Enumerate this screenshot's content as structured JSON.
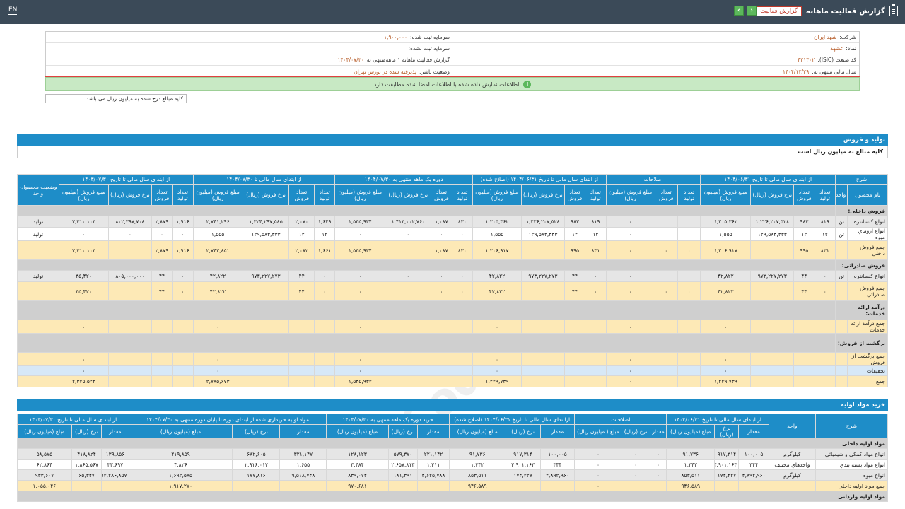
{
  "topbar": {
    "lang": "EN",
    "title": "گزارش فعالیت ماهانه",
    "report_select": "گزارش فعالیت",
    "next": "‹",
    "prev": "›"
  },
  "info": {
    "company_label": "شرکت:",
    "company": "شهد ایران",
    "capital_label": "سرمایه ثبت شده:",
    "capital": "۱,۹۰۰,۰۰۰",
    "symbol_label": "نماد:",
    "symbol": "غشهد",
    "unreg_capital_label": "سرمایه ثبت نشده:",
    "unreg_capital": "۰",
    "isic_label": "کد صنعت (ISIC):",
    "isic": "۴۲۱۳۰۲",
    "report_label": "گزارش فعالیت ماهانه ۱ ماهه‌منتهی به",
    "report_date": "۱۴۰۴/۰۷/۳۰",
    "fiscal_label": "سال مالی منتهی به:",
    "fiscal": "۱۴۰۴/۱۲/۲۹",
    "status_label": "وضعیت ناشر:",
    "status": "پذیرفته شده در بورس تهران",
    "notice": "اطلاعات نمایش داده شده با اطلاعات امضا شده مطابقت دارد",
    "unit_note": "کلیه مبالغ درج شده به میلیون ریال می باشد"
  },
  "section1": {
    "title": "تولید و فروش",
    "subtitle": "کلیه مبالغ به میلیون ریال است",
    "header_top": [
      "شرح",
      "از ابتدای سال مالی تا تاریخ ۱۴۰۴/۰۶/۳۱",
      "اصلاحات",
      "از ابتدای سال مالی تا تاریخ ۱۴۰۴/۰۶/۳۱ (اصلاح شده)",
      "دوره یک ماهه منتهی به ۱۴۰۴/۰۷/۳۰",
      "از ابتدای سال مالی تا ۱۴۰۴/۰۷/۳۰",
      "از ابتدای سال مالی تا تاریخ ۱۴۰۳/۰۷/۳۰",
      "وضعیت محصول-واحد"
    ],
    "header_sub": [
      "نام محصول",
      "واحد",
      "تعداد تولید",
      "تعداد فروش",
      "نرخ فروش (ریال)",
      "مبلغ فروش (میلیون ریال)",
      "تعداد تولید",
      "تعداد فروش",
      "مبلغ فروش (میلیون ریال)",
      "تعداد تولید",
      "تعداد فروش",
      "نرخ فروش (ریال)",
      "مبلغ فروش (میلیون ریال)",
      "تعداد تولید",
      "تعداد فروش",
      "نرخ فروش (ریال)",
      "مبلغ فروش (میلیون ریال)",
      "تعداد تولید",
      "تعداد فروش",
      "نرخ فروش (ریال)",
      "مبلغ فروش (میلیون ریال)",
      "تعداد تولید",
      "تعداد فروش",
      "نرخ فروش (ریال)",
      "مبلغ فروش (میلیون ریال)"
    ],
    "rows": [
      {
        "style": "cat",
        "cells": [
          "فروش داخلی:"
        ]
      },
      {
        "style": "g",
        "cells": [
          "انواع کنسانتره",
          "تن",
          "۸۱۹",
          "۹۸۳",
          "۱,۲۲۶,۲۰۷,۵۲۸",
          "۱,۲۰۵,۳۶۲",
          "",
          "",
          "۰",
          "۸۱۹",
          "۹۸۳",
          "۱,۲۲۶,۲۰۷,۵۲۸",
          "۱,۲۰۵,۳۶۲",
          "۸۳۰",
          "۱,۰۸۷",
          "۱,۴۱۳,۰۰۲,۷۶۰",
          "۱,۵۳۵,۹۳۴",
          "۱,۶۴۹",
          "۲,۰۷۰",
          "۱,۳۲۴,۲۹۷,۵۸۵",
          "۲,۷۴۱,۲۹۶",
          "۱,۹۱۶",
          "۲,۸۷۹",
          "۸۰۲,۳۹۷,۷۰۸",
          "۲,۳۱۰,۱۰۳",
          "تولید"
        ]
      },
      {
        "style": "w",
        "cells": [
          "انواع آروماي ميوه",
          "تن",
          "۱۲",
          "۱۲",
          "۱۲۹,۵۸۳,۳۳۳",
          "۱,۵۵۵",
          "",
          "",
          "۰",
          "۱۲",
          "۱۲",
          "۱۲۹,۵۸۳,۳۳۳",
          "۱,۵۵۵",
          "۰",
          "۰",
          "۰",
          "۰",
          "۱۲",
          "۱۲",
          "۱۲۹,۵۸۳,۳۳۳",
          "۱,۵۵۵",
          "۰",
          "۰",
          "۰",
          "۰",
          "تولید"
        ]
      },
      {
        "style": "y",
        "cells": [
          "جمع فروش داخلی",
          "",
          "۸۳۱",
          "۹۹۵",
          "",
          "۱,۲۰۶,۹۱۷",
          "۰",
          "۰",
          "۰",
          "۸۳۱",
          "۹۹۵",
          "",
          "۱,۲۰۶,۹۱۷",
          "۸۳۰",
          "۱,۰۸۷",
          "",
          "۱,۵۳۵,۹۳۴",
          "۱,۶۶۱",
          "۲,۰۸۲",
          "",
          "۲,۷۴۲,۸۵۱",
          "۱,۹۱۶",
          "۲,۸۷۹",
          "",
          "۲,۳۱۰,۱۰۳",
          ""
        ]
      },
      {
        "style": "cat",
        "cells": [
          "فروش صادراتی:"
        ]
      },
      {
        "style": "g",
        "cells": [
          "انواع کنسانتره",
          "تن",
          "۰",
          "۴۴",
          "۹۷۳,۲۲۷,۲۷۳",
          "۴۲,۸۲۲",
          "",
          "",
          "۰",
          "۰",
          "۴۴",
          "۹۷۳,۲۲۷,۲۷۳",
          "۴۲,۸۲۲",
          "۰",
          "۰",
          "۰",
          "۰",
          "۰",
          "۴۴",
          "۹۷۳,۲۲۷,۲۷۳",
          "۴۲,۸۲۲",
          "۰",
          "۴۴",
          "۸۰۵,۰۰۰,۰۰۰",
          "۳۵,۴۲۰",
          "تولید"
        ]
      },
      {
        "style": "y",
        "cells": [
          "جمع فروش صادراتی",
          "",
          "۰",
          "۴۴",
          "",
          "۴۲,۸۲۲",
          "۰",
          "۰",
          "۰",
          "۰",
          "۴۴",
          "",
          "۴۲,۸۲۲",
          "۰",
          "۰",
          "",
          "۰",
          "۰",
          "۴۴",
          "",
          "۴۲,۸۲۲",
          "۰",
          "۴۴",
          "",
          "۳۵,۴۲۰",
          ""
        ]
      },
      {
        "style": "cat",
        "cells": [
          "درآمد ارائه خدمات:"
        ]
      },
      {
        "style": "y",
        "cells": [
          "جمع درآمد ارائه خدمات",
          "",
          "",
          "",
          "",
          "۰",
          "",
          "",
          "۰",
          "",
          "",
          "",
          "۰",
          "",
          "",
          "",
          "۰",
          "",
          "",
          "",
          "۰",
          "",
          "",
          "",
          "۰",
          ""
        ]
      },
      {
        "style": "cat",
        "cells": [
          "برگشت از فروش:"
        ]
      },
      {
        "style": "y",
        "cells": [
          "جمع برگشت از فروش",
          "",
          "",
          "",
          "",
          "۰",
          "",
          "",
          "۰",
          "",
          "",
          "",
          "۰",
          "",
          "",
          "",
          "۰",
          "",
          "",
          "",
          "۰",
          "",
          "",
          "",
          "۰",
          ""
        ]
      },
      {
        "style": "b",
        "cells": [
          "تخفیفات",
          "",
          "",
          "",
          "",
          "۰",
          "",
          "",
          "۰",
          "",
          "",
          "",
          "۰",
          "",
          "",
          "",
          "۰",
          "",
          "",
          "",
          "۰",
          "",
          "",
          "",
          "۰",
          ""
        ]
      },
      {
        "style": "y",
        "cells": [
          "جمع",
          "",
          "",
          "",
          "",
          "۱,۲۴۹,۷۳۹",
          "",
          "",
          "۰",
          "",
          "",
          "",
          "۱,۲۴۹,۷۳۹",
          "",
          "",
          "",
          "۱,۵۳۵,۹۳۴",
          "",
          "",
          "",
          "۲,۷۸۵,۶۷۳",
          "",
          "",
          "",
          "۲,۳۴۵,۵۲۳",
          ""
        ]
      }
    ]
  },
  "section2": {
    "title": "خرید مواد اولیه",
    "header_top": [
      "شرح",
      "واحد",
      "از ابتدای سال مالی تا تاریخ ۱۴۰۴/۰۶/۳۱",
      "اصلاحات",
      "ازابتدای سال مالی تا تاریخ ۱۴۰۴/۰۶/۳۱ (اصلاح شده)",
      "خرید دوره یک ماهه منتهی به ۱۴۰۴/۰۷/۳۰",
      "مواد اولیه خریداری شده از ابتدای دوره تا پایان دوره منتهی به ۱۴۰۴/۰۷/۳۰",
      "از ابتدای سال مالی تا تاریخ ۱۴۰۳/۰۷/۳۰"
    ],
    "header_sub": [
      "مقدار",
      "نرخ (ریال)",
      "مبلغ (میلیون ریال)",
      "مقدار",
      "نرخ (ریال)",
      "مبلغ ( میلیون ریال)",
      "مقدار",
      "نرخ (ریال)",
      "مبلغ (میلیون ریال)",
      "مقدار",
      "نرخ (ریال)",
      "مبلغ (میلیون ریال)",
      "مقدار",
      "نرخ (ریال)",
      "مبلغ (میلیون ریال)",
      "مقدار",
      "نرخ (ریال)",
      "مبلغ (میلیون ریال)"
    ],
    "rows": [
      {
        "style": "cat",
        "cells": [
          "مواد اولیه داخلی"
        ]
      },
      {
        "style": "g",
        "cells": [
          "انواع مواد کمکی و شیمیائي",
          "کیلوگرم",
          "۱۰۰,۰۰۵",
          "۹۱۷,۳۱۴",
          "۹۱,۷۳۶",
          "۰",
          "۰",
          "۰",
          "۱۰۰,۰۰۵",
          "۹۱۷,۳۱۴",
          "۹۱,۷۳۶",
          "۲۲۱,۱۴۲",
          "۵۷۹,۳۷۰",
          "۱۲۸,۱۲۳",
          "۳۲۱,۱۴۷",
          "۶۸۲,۶۰۵",
          "۲۱۹,۸۵۹",
          "۱۳۹,۸۵۶",
          "۴۱۸,۸۲۴",
          "۵۸,۵۷۵"
        ]
      },
      {
        "style": "w",
        "cells": [
          "انواع مواد بسته بندي",
          "واحدهاي مختلف",
          "۳۴۴",
          "۳,۹۰۱,۱۶۳",
          "۱,۳۴۲",
          "۰",
          "۰",
          "۰",
          "۳۴۴",
          "۳,۹۰۱,۱۶۳",
          "۱,۳۴۲",
          "۱,۳۱۱",
          "۲,۶۵۷,۸۱۳",
          "۳,۴۸۴",
          "۱,۶۵۵",
          "۲,۹۱۶,۰۱۲",
          "۴,۸۲۶",
          "۳۳,۶۹۷",
          "۱,۸۶۵,۵۶۷",
          "۶۲,۸۶۴"
        ]
      },
      {
        "style": "g",
        "cells": [
          "انواع میوه",
          "کیلوگرم",
          "۴,۸۹۲,۹۶۰",
          "۱۷۴,۴۲۷",
          "۸۵۳,۵۱۱",
          "۰",
          "۰",
          "۰",
          "۴,۸۹۲,۹۶۰",
          "۱۷۴,۴۲۷",
          "۸۵۳,۵۱۱",
          "۴,۶۲۵,۷۸۸",
          "۱۸۱,۳۹۱",
          "۸۳۹,۰۷۴",
          "۹,۵۱۸,۷۴۸",
          "۱۷۷,۸۱۶",
          "۱,۶۹۲,۵۸۵",
          "۱۴,۲۸۶,۸۵۷",
          "۶۵,۳۴۷",
          "۹۳۳,۶۰۷"
        ]
      },
      {
        "style": "y",
        "cells": [
          "جمع مواد اولیه داخلی",
          "",
          "",
          "",
          "۹۴۶,۵۸۹",
          "",
          "",
          "۰",
          "",
          "",
          "۹۴۶,۵۸۹",
          "",
          "",
          "۹۷۰,۶۸۱",
          "",
          "",
          "۱,۹۱۷,۲۷۰",
          "",
          "",
          "۱,۰۵۵,۰۴۶"
        ]
      },
      {
        "style": "cat",
        "cells": [
          "مواد اولیه وارداتی"
        ]
      }
    ]
  }
}
